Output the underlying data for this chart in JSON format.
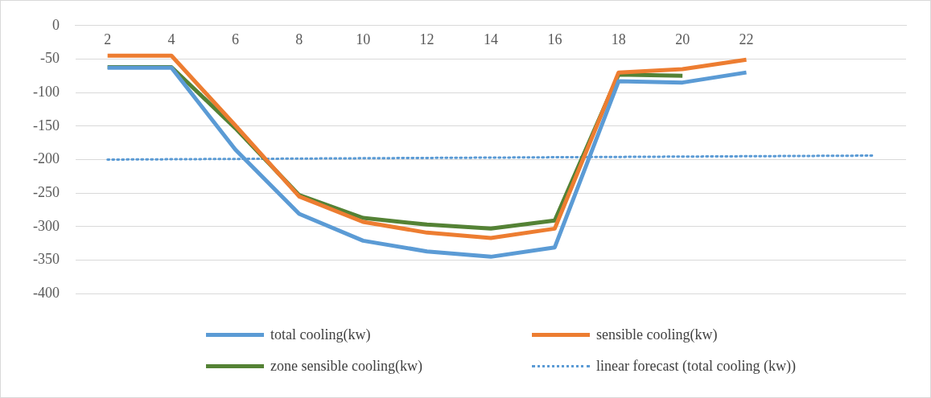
{
  "chart_data": {
    "type": "line",
    "categories": [
      "2",
      "4",
      "6",
      "8",
      "10",
      "12",
      "14",
      "16",
      "18",
      "20",
      "22",
      null,
      null
    ],
    "series": [
      {
        "name": "total cooling(kw)",
        "color": "#5b9bd5",
        "values": [
          -63,
          -63,
          -185,
          -281,
          -321,
          -337,
          -345,
          -331,
          -83,
          -85,
          -70,
          null,
          null
        ]
      },
      {
        "name": "sensible cooling(kw)",
        "color": "#ed7d31",
        "values": [
          -45,
          -45,
          -149,
          -255,
          -293,
          -309,
          -317,
          -303,
          -70,
          -65,
          -51,
          null,
          null
        ]
      },
      {
        "name": "zone sensible cooling(kw)",
        "color": "#548235",
        "values": [
          -62,
          -62,
          -153,
          -253,
          -287,
          -297,
          -303,
          -291,
          -73,
          -75,
          null,
          null,
          null
        ]
      },
      {
        "name": "linear forecast (total cooling (kw))",
        "color": "#5b9bd5",
        "line_style": "dotted",
        "values": [
          -200,
          -199.5,
          -199,
          -198.5,
          -198,
          -197.5,
          -197,
          -196.5,
          -196,
          -195.5,
          -195,
          -194.5,
          -194
        ]
      }
    ],
    "ylim": [
      -400,
      0
    ],
    "yticks": [
      -400,
      -350,
      -300,
      -250,
      -200,
      -150,
      -100,
      -50,
      0
    ],
    "grid": "y",
    "legend": "bottom",
    "marker": "none"
  }
}
